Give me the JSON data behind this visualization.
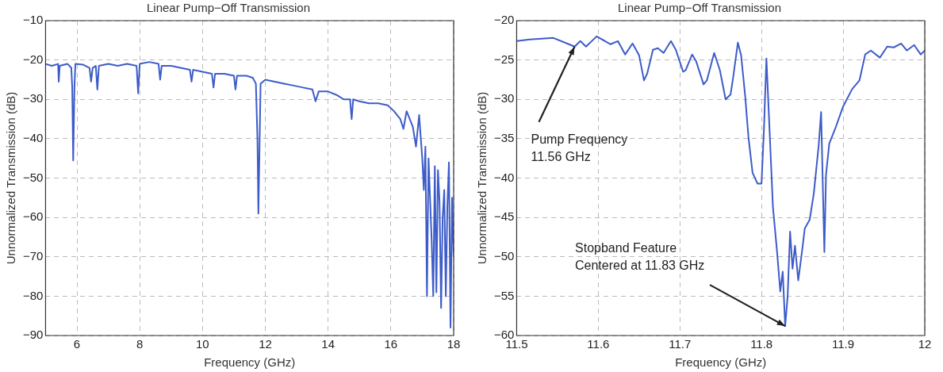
{
  "chart_data": [
    {
      "type": "line",
      "title": "Linear Pump−Off Transmission",
      "xlabel": "Frequency (GHz)",
      "ylabel": "Unnormalized Transmission (dB)",
      "x": [
        5.0,
        5.2,
        5.4,
        5.42,
        5.45,
        5.7,
        5.82,
        5.85,
        5.88,
        5.92,
        5.95,
        6.2,
        6.4,
        6.45,
        6.5,
        6.6,
        6.65,
        6.7,
        7.0,
        7.3,
        7.6,
        7.9,
        7.95,
        8.0,
        8.3,
        8.6,
        8.65,
        8.7,
        9.0,
        9.3,
        9.6,
        9.65,
        9.7,
        10.0,
        10.3,
        10.35,
        10.4,
        10.7,
        11.0,
        11.05,
        11.1,
        11.4,
        11.6,
        11.7,
        11.75,
        11.78,
        11.82,
        11.85,
        12.0,
        12.3,
        12.6,
        12.9,
        13.2,
        13.5,
        13.6,
        13.7,
        14.0,
        14.3,
        14.5,
        14.7,
        14.75,
        14.8,
        15.0,
        15.3,
        15.6,
        15.9,
        16.1,
        16.3,
        16.4,
        16.5,
        16.7,
        16.8,
        16.9,
        17.0,
        17.05,
        17.1,
        17.15,
        17.2,
        17.3,
        17.35,
        17.4,
        17.45,
        17.5,
        17.55,
        17.6,
        17.65,
        17.7,
        17.75,
        17.8,
        17.85,
        17.9,
        17.95,
        18.0
      ],
      "series": [
        {
          "color": "#3d5cc9",
          "values": [
            -21,
            -21.5,
            -21,
            -25.5,
            -21.5,
            -21,
            -22,
            -27,
            -45.5,
            -27,
            -21,
            -21.2,
            -22,
            -25.5,
            -22,
            -21.5,
            -27.5,
            -21.5,
            -21,
            -21.5,
            -21,
            -21.5,
            -28.5,
            -21,
            -20.5,
            -21,
            -25,
            -21.5,
            -21.5,
            -22,
            -22.5,
            -25.5,
            -22.5,
            -23,
            -23.5,
            -27,
            -23.5,
            -23.5,
            -24,
            -27.5,
            -24,
            -24,
            -24.5,
            -26,
            -40,
            -59,
            -40,
            -26,
            -25,
            -25.5,
            -26,
            -26.5,
            -27,
            -27.5,
            -30.5,
            -28,
            -28,
            -29,
            -30,
            -30,
            -35,
            -30,
            -30.5,
            -31,
            -31,
            -31.5,
            -33,
            -35,
            -37.5,
            -33,
            -37,
            -42,
            -34,
            -45,
            -53,
            -42,
            -80,
            -45,
            -66,
            -80,
            -47,
            -79,
            -48,
            -56,
            -83,
            -60,
            -53,
            -80,
            -57,
            -46,
            -88,
            -55,
            -70
          ]
        }
      ],
      "xlim": [
        5,
        18
      ],
      "ylim": [
        -90,
        -10
      ],
      "xticks": [
        6,
        8,
        10,
        12,
        14,
        16,
        18
      ],
      "yticks": [
        -90,
        -80,
        -70,
        -60,
        -50,
        -40,
        -30,
        -20,
        -10
      ],
      "grid": true
    },
    {
      "type": "line",
      "title": "Linear Pump−Off Transmission",
      "xlabel": "Frequency (GHz)",
      "ylabel": "Unnormalized Transmission (dB)",
      "x": [
        11.5,
        11.516,
        11.545,
        11.564,
        11.571,
        11.578,
        11.585,
        11.598,
        11.615,
        11.624,
        11.633,
        11.642,
        11.65,
        11.656,
        11.66,
        11.667,
        11.673,
        11.68,
        11.689,
        11.695,
        11.704,
        11.707,
        11.715,
        11.72,
        11.729,
        11.733,
        11.742,
        11.749,
        11.756,
        11.762,
        11.765,
        11.771,
        11.775,
        11.78,
        11.784,
        11.789,
        11.795,
        11.8,
        11.803,
        11.806,
        11.809,
        11.814,
        11.819,
        11.823,
        11.826,
        11.829,
        11.832,
        11.835,
        11.838,
        11.841,
        11.845,
        11.85,
        11.853,
        11.859,
        11.864,
        11.87,
        11.873,
        11.877,
        11.879,
        11.883,
        11.89,
        11.9,
        11.911,
        11.92,
        11.927,
        11.934,
        11.945,
        11.954,
        11.962,
        11.971,
        11.978,
        11.987,
        11.995,
        12.0
      ],
      "series": [
        {
          "color": "#3d5cc9",
          "values": [
            -22.6,
            -22.4,
            -22.2,
            -23,
            -23.3,
            -22.6,
            -23.3,
            -22,
            -23,
            -22.6,
            -24.3,
            -22.9,
            -24.4,
            -27.6,
            -26.7,
            -23.7,
            -23.5,
            -24.1,
            -22.6,
            -23.7,
            -26.5,
            -26.3,
            -24.3,
            -25.2,
            -28.1,
            -27.6,
            -24.1,
            -26.3,
            -30,
            -29.4,
            -27.4,
            -22.8,
            -24.4,
            -29.6,
            -34.8,
            -39.3,
            -40.7,
            -40.7,
            -33.7,
            -24.8,
            -31.9,
            -43.7,
            -49.3,
            -54.4,
            -51.9,
            -58.8,
            -55,
            -46.8,
            -51.5,
            -48.6,
            -53,
            -49,
            -46.4,
            -45.3,
            -42,
            -35.9,
            -31.6,
            -49.4,
            -39.6,
            -35.6,
            -33.8,
            -30.9,
            -28.7,
            -27.6,
            -24.3,
            -23.8,
            -24.7,
            -23.3,
            -23.4,
            -22.9,
            -23.8,
            -23.1,
            -24.3,
            -23.8
          ]
        }
      ],
      "xlim": [
        11.5,
        12
      ],
      "ylim": [
        -60,
        -20
      ],
      "xticks": [
        11.5,
        11.6,
        11.7,
        11.8,
        11.9,
        12
      ],
      "yticks": [
        -60,
        -55,
        -50,
        -45,
        -40,
        -35,
        -30,
        -25,
        -20
      ],
      "grid": true,
      "annotations": [
        {
          "text": "Pump Frequency\n11.56 GHz",
          "x": 11.571,
          "y": -23.3
        },
        {
          "text": "Stopband Feature\nCentered at 11.83 GHz",
          "x": 11.829,
          "y": -58.8
        }
      ]
    }
  ]
}
